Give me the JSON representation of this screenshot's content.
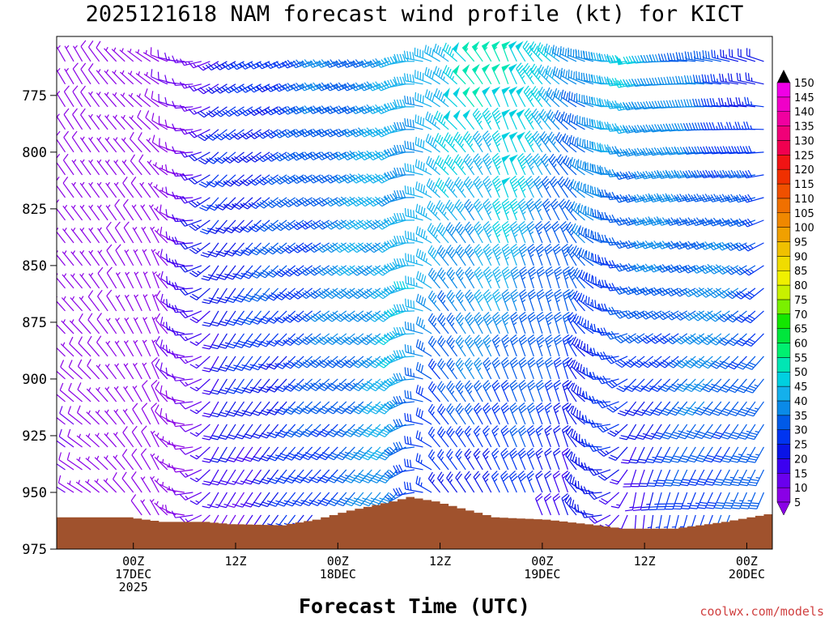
{
  "page": {
    "title": "2025121618 NAM forecast wind profile (kt) for KICT",
    "credit": "coolwx.com/models"
  },
  "chart_data": {
    "type": "wind-barb-profile",
    "title": "2025121618 NAM forecast wind profile (kt) for KICT",
    "xlabel": "Forecast Time (UTC)",
    "ylabel": "",
    "x_unit": "forecast hour from 2025121618",
    "xlim": [
      -3,
      81
    ],
    "y_unit": "hPa",
    "ylim": [
      975,
      749
    ],
    "y_ticks": [
      775,
      800,
      825,
      850,
      875,
      900,
      925,
      950,
      975
    ],
    "x_ticks": [
      {
        "hour": 6,
        "labels": [
          "00Z",
          "17DEC",
          "2025"
        ]
      },
      {
        "hour": 18,
        "labels": [
          "12Z"
        ]
      },
      {
        "hour": 30,
        "labels": [
          "00Z",
          "18DEC"
        ]
      },
      {
        "hour": 42,
        "labels": [
          "12Z"
        ]
      },
      {
        "hour": 54,
        "labels": [
          "00Z",
          "19DEC"
        ]
      },
      {
        "hour": 66,
        "labels": [
          "12Z"
        ]
      },
      {
        "hour": 78,
        "labels": [
          "00Z",
          "20DEC"
        ]
      }
    ],
    "colorbar": {
      "unit": "kt",
      "levels": [
        5,
        10,
        15,
        20,
        25,
        30,
        35,
        40,
        45,
        50,
        55,
        60,
        65,
        70,
        75,
        80,
        85,
        90,
        95,
        100,
        105,
        110,
        115,
        120,
        125,
        130,
        135,
        140,
        145,
        150
      ],
      "colors": [
        "#8a00e6",
        "#6a00ee",
        "#3c00f0",
        "#0a14e6",
        "#0034f0",
        "#005ae8",
        "#0a8ae8",
        "#14b0ec",
        "#00d0e0",
        "#00e6b4",
        "#00f070",
        "#00e63c",
        "#14e600",
        "#7af000",
        "#c8f000",
        "#f0f000",
        "#f0dc00",
        "#f0c000",
        "#f0a000",
        "#f08800",
        "#f07000",
        "#f05000",
        "#f03000",
        "#f01414",
        "#f00050",
        "#f00078",
        "#f000a0",
        "#f000c8",
        "#f000e6",
        "#ffffff"
      ]
    },
    "terrain": {
      "color": "#a0522d",
      "surface_pressure": [
        {
          "hour": -3,
          "p": 961
        },
        {
          "hour": 5,
          "p": 961
        },
        {
          "hour": 9,
          "p": 963
        },
        {
          "hour": 14,
          "p": 963
        },
        {
          "hour": 17,
          "p": 964
        },
        {
          "hour": 23,
          "p": 964.5
        },
        {
          "hour": 27,
          "p": 962
        },
        {
          "hour": 31,
          "p": 958
        },
        {
          "hour": 36,
          "p": 954
        },
        {
          "hour": 38,
          "p": 952
        },
        {
          "hour": 41,
          "p": 954
        },
        {
          "hour": 45,
          "p": 958
        },
        {
          "hour": 48,
          "p": 961
        },
        {
          "hour": 54,
          "p": 962
        },
        {
          "hour": 60,
          "p": 964.5
        },
        {
          "hour": 63,
          "p": 966
        },
        {
          "hour": 69,
          "p": 966
        },
        {
          "hour": 75,
          "p": 963
        },
        {
          "hour": 81,
          "p": 959
        }
      ]
    },
    "barb_field": {
      "hour_step": 1,
      "levels": [
        760,
        770,
        780,
        790,
        800,
        810,
        820,
        830,
        840,
        850,
        860,
        870,
        880,
        890,
        900,
        910,
        920,
        930,
        940,
        950,
        960,
        965
      ],
      "keyframes": [
        {
          "hour": 0,
          "low_dir": 300,
          "low_spd": 8,
          "mid_dir": 320,
          "mid_spd": 6,
          "high_dir": 330,
          "high_spd": 6
        },
        {
          "hour": 9,
          "low_dir": 330,
          "low_spd": 6,
          "mid_dir": 340,
          "mid_spd": 5,
          "high_dir": 300,
          "high_spd": 5
        },
        {
          "hour": 16,
          "low_dir": 210,
          "low_spd": 12,
          "mid_dir": 210,
          "mid_spd": 25,
          "high_dir": 240,
          "high_spd": 20
        },
        {
          "hour": 28,
          "low_dir": 220,
          "low_spd": 28,
          "mid_dir": 235,
          "mid_spd": 32,
          "high_dir": 250,
          "high_spd": 33
        },
        {
          "hour": 37,
          "low_dir": 220,
          "low_spd": 38,
          "mid_dir": 235,
          "mid_spd": 45,
          "high_dir": 250,
          "high_spd": 38
        },
        {
          "hour": 42,
          "low_dir": 320,
          "low_spd": 20,
          "mid_dir": 320,
          "mid_spd": 40,
          "high_dir": 300,
          "high_spd": 45
        },
        {
          "hour": 50,
          "low_dir": 335,
          "low_spd": 25,
          "mid_dir": 340,
          "mid_spd": 40,
          "high_dir": 340,
          "high_spd": 55
        },
        {
          "hour": 57,
          "low_dir": 340,
          "low_spd": 20,
          "mid_dir": 345,
          "mid_spd": 30,
          "high_dir": 300,
          "high_spd": 38
        },
        {
          "hour": 65,
          "low_dir": 180,
          "low_spd": 18,
          "mid_dir": 250,
          "mid_spd": 30,
          "high_dir": 260,
          "high_spd": 45
        },
        {
          "hour": 74,
          "low_dir": 200,
          "low_spd": 30,
          "mid_dir": 240,
          "mid_spd": 38,
          "high_dir": 280,
          "high_spd": 30
        },
        {
          "hour": 81,
          "low_dir": 200,
          "low_spd": 32,
          "mid_dir": 230,
          "mid_spd": 30,
          "high_dir": 290,
          "high_spd": 20
        }
      ]
    }
  }
}
